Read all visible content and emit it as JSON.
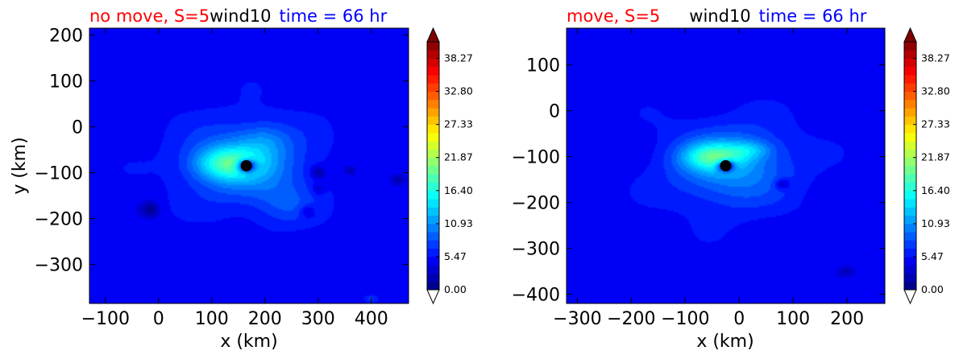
{
  "chart_data": [
    {
      "type": "heatmap",
      "title_parts": [
        {
          "text": "no move, S=5",
          "color": "#ff0000"
        },
        {
          "text": "wind10",
          "color": "#000000"
        },
        {
          "text": "time = 66 hr",
          "color": "#0000ff"
        }
      ],
      "xlabel": "x (km)",
      "ylabel": "y (km)",
      "xlim": [
        -130,
        470
      ],
      "ylim": [
        -385,
        215
      ],
      "xticks": [
        -100,
        0,
        100,
        200,
        300,
        400
      ],
      "xtick_labels": [
        "−100",
        "0",
        "100",
        "200",
        "300",
        "400"
      ],
      "yticks": [
        200,
        100,
        0,
        -100,
        -200,
        -300
      ],
      "ytick_labels": [
        "200",
        "100",
        "0",
        "−100",
        "−200",
        "−300"
      ],
      "center_marker": {
        "x": 165,
        "y": -85
      },
      "field": {
        "background": 4.8,
        "blobs": [
          {
            "x": 165,
            "y": -80,
            "sx": 110,
            "sy": 85,
            "a": 6.5
          },
          {
            "x": 130,
            "y": -80,
            "sx": 60,
            "sy": 35,
            "a": 9
          },
          {
            "x": 200,
            "y": -30,
            "sx": 45,
            "sy": 35,
            "a": 2.5
          },
          {
            "x": 240,
            "y": -170,
            "sx": 55,
            "sy": 45,
            "a": 2.5
          },
          {
            "x": 165,
            "y": -85,
            "sx": 18,
            "sy": 14,
            "a": -14
          },
          {
            "x": 300,
            "y": -100,
            "sx": 14,
            "sy": 14,
            "a": -4
          },
          {
            "x": 360,
            "y": -95,
            "sx": 12,
            "sy": 12,
            "a": -3
          },
          {
            "x": 450,
            "y": -115,
            "sx": 14,
            "sy": 12,
            "a": -3
          },
          {
            "x": 280,
            "y": -185,
            "sx": 14,
            "sy": 14,
            "a": -3
          },
          {
            "x": 300,
            "y": -135,
            "sx": 12,
            "sy": 12,
            "a": -2.5
          },
          {
            "x": -15,
            "y": -180,
            "sx": 16,
            "sy": 16,
            "a": -4
          },
          {
            "x": 400,
            "y": -375,
            "sx": 14,
            "sy": 10,
            "a": 3
          }
        ]
      }
    },
    {
      "type": "heatmap",
      "title_parts": [
        {
          "text": "move, S=5",
          "color": "#ff0000"
        },
        {
          "text": "wind10",
          "color": "#000000"
        },
        {
          "text": "time = 66 hr",
          "color": "#0000ff"
        }
      ],
      "xlabel": "x (km)",
      "ylabel": "",
      "xlim": [
        -320,
        270
      ],
      "ylim": [
        -420,
        180
      ],
      "xticks": [
        -300,
        -200,
        -100,
        0,
        100,
        200
      ],
      "xtick_labels": [
        "−300",
        "−200",
        "−100",
        "0",
        "100",
        "200"
      ],
      "yticks": [
        100,
        0,
        -100,
        -200,
        -300,
        -400
      ],
      "ytick_labels": [
        "100",
        "0",
        "−100",
        "−200",
        "−300",
        "−400"
      ],
      "center_marker": {
        "x": -25,
        "y": -120
      },
      "field": {
        "background": 4.8,
        "blobs": [
          {
            "x": -15,
            "y": -120,
            "sx": 110,
            "sy": 85,
            "a": 6.5
          },
          {
            "x": -50,
            "y": -100,
            "sx": 55,
            "sy": 30,
            "a": 9
          },
          {
            "x": 20,
            "y": -85,
            "sx": 40,
            "sy": 20,
            "a": 4
          },
          {
            "x": -25,
            "y": -120,
            "sx": 16,
            "sy": 12,
            "a": -13
          },
          {
            "x": 80,
            "y": -160,
            "sx": 14,
            "sy": 12,
            "a": -4
          },
          {
            "x": 200,
            "y": -350,
            "sx": 14,
            "sy": 10,
            "a": -2
          }
        ]
      }
    }
  ],
  "colorbar": {
    "min": 0.0,
    "max": 41.0,
    "levels": 30,
    "tick_values": [
      0.0,
      5.47,
      10.93,
      16.4,
      21.87,
      27.33,
      32.8,
      38.27
    ],
    "tick_labels": [
      "0.00",
      "5.47",
      "10.93",
      "16.40",
      "21.87",
      "27.33",
      "32.80",
      "38.27"
    ],
    "under_color": "#ffffff",
    "over_color": "#800000"
  }
}
